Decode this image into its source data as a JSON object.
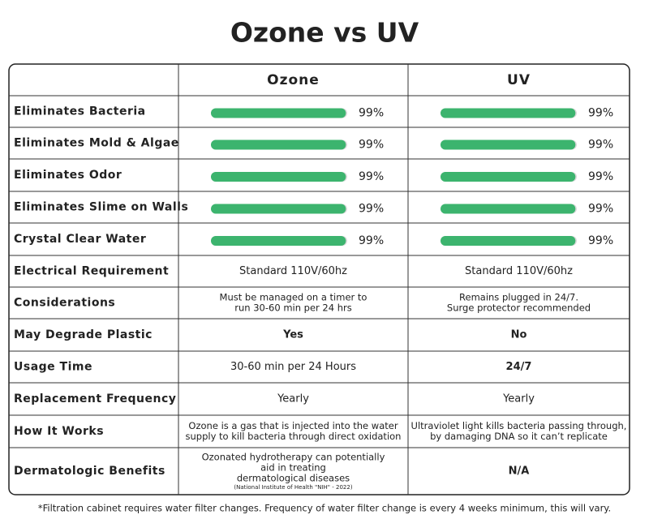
{
  "title": "Ozone vs UV",
  "table": {
    "columns": [
      "Ozone",
      "UV"
    ],
    "bar_range": [
      0,
      100
    ],
    "bar_color": "#3cb46e",
    "rows": [
      {
        "label": "Eliminates Bacteria",
        "cells": [
          {
            "value": 99,
            "label": "99%"
          },
          {
            "value": 99,
            "label": "99%"
          }
        ]
      },
      {
        "label": "Eliminates Mold & Algae",
        "cells": [
          {
            "value": 99,
            "label": "99%"
          },
          {
            "value": 99,
            "label": "99%"
          }
        ]
      },
      {
        "label": "Eliminates Odor",
        "cells": [
          {
            "value": 99,
            "label": "99%"
          },
          {
            "value": 99,
            "label": "99%"
          }
        ]
      },
      {
        "label": "Eliminates Slime on Walls",
        "cells": [
          {
            "value": 99,
            "label": "99%"
          },
          {
            "value": 99,
            "label": "99%"
          }
        ]
      },
      {
        "label": "Crystal Clear Water",
        "cells": [
          {
            "value": 99,
            "label": "99%"
          },
          {
            "value": 99,
            "label": "99%"
          }
        ]
      },
      {
        "label": "Electrical Requirement",
        "cells": [
          {
            "lines": [
              "Standard 110V/60hz"
            ]
          },
          {
            "lines": [
              "Standard 110V/60hz"
            ]
          }
        ]
      },
      {
        "label": "Considerations",
        "cells": [
          {
            "lines": [
              "Must be managed on a timer to",
              "run 30-60 min per 24 hrs"
            ]
          },
          {
            "lines": [
              "Remains plugged in 24/7.",
              "Surge protector recommended"
            ]
          }
        ]
      },
      {
        "label": "May Degrade Plastic",
        "cells": [
          {
            "lines": [
              "Yes"
            ]
          },
          {
            "lines": [
              "No"
            ]
          }
        ]
      },
      {
        "label": "Usage Time",
        "cells": [
          {
            "lines": [
              "30-60 min per 24 Hours"
            ]
          },
          {
            "lines": [
              "24/7"
            ]
          }
        ]
      },
      {
        "label": "Replacement Frequency",
        "cells": [
          {
            "lines": [
              "Yearly"
            ]
          },
          {
            "lines": [
              "Yearly"
            ]
          }
        ]
      },
      {
        "label": "How It Works",
        "cells": [
          {
            "lines": [
              "Ozone is a gas that is injected into the water",
              "supply to kill bacteria through direct oxidation"
            ]
          },
          {
            "lines": [
              "Ultraviolet light kills bacteria passing through,",
              "by damaging DNA so it can’t replicate"
            ]
          }
        ]
      },
      {
        "label": "Dermatologic Benefits",
        "cells": [
          {
            "lines": [
              "Ozonated hydrotherapy can potentially",
              "aid in treating",
              "dermatological diseases"
            ],
            "note": "(National Institute of Health \"NIH\" - 2022)"
          },
          {
            "lines": [
              "N/A"
            ]
          }
        ]
      }
    ]
  },
  "footnote": "*Filtration cabinet requires water filter changes. Frequency of water filter change is every 4 weeks minimum, this will vary."
}
